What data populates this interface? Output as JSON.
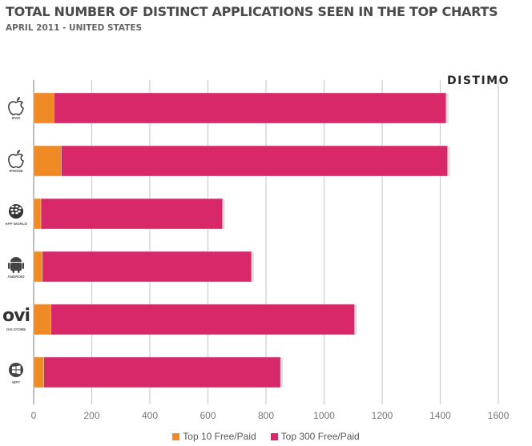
{
  "header": {
    "title": "TOTAL NUMBER OF DISTINCT APPLICATIONS SEEN IN THE TOP CHARTS",
    "subtitle": "APRIL 2011  - UNITED STATES",
    "brand": "DISTIMO"
  },
  "colors": {
    "top10": "#f08a24",
    "top300": "#d9286a",
    "grid": "#cfcfcf"
  },
  "chart_data": {
    "type": "bar",
    "orientation": "horizontal",
    "stacked": true,
    "title": "TOTAL NUMBER OF DISTINCT APPLICATIONS SEEN IN THE TOP CHARTS",
    "subtitle": "APRIL 2011  - UNITED STATES",
    "categories": [
      "IPAD",
      "IPHONE",
      "APP WORLD",
      "ANDROID",
      "OVI STORE",
      "WP7"
    ],
    "category_icons": [
      "apple-icon",
      "apple-icon",
      "blackberry-icon",
      "android-icon",
      "ovi-icon",
      "windows-icon"
    ],
    "series": [
      {
        "name": "Top 10 Free/Paid",
        "color": "#f08a24",
        "values": [
          70,
          95,
          25,
          30,
          60,
          35
        ]
      },
      {
        "name": "Top 300 Free/Paid",
        "color": "#d9286a",
        "values": [
          1350,
          1330,
          625,
          720,
          1045,
          815
        ]
      }
    ],
    "xlim": [
      0,
      1600
    ],
    "xticks": [
      0,
      200,
      400,
      600,
      800,
      1000,
      1200,
      1400,
      1600
    ],
    "grid": "vertical",
    "legend_position": "bottom-center"
  }
}
